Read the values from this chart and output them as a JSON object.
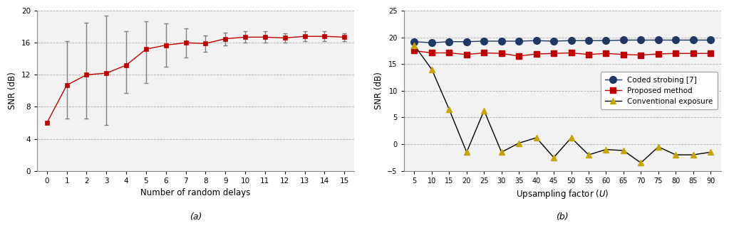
{
  "plot_a": {
    "x": [
      0,
      1,
      2,
      3,
      4,
      5,
      6,
      7,
      8,
      9,
      10,
      11,
      12,
      13,
      14,
      15
    ],
    "y": [
      6.0,
      10.7,
      12.0,
      12.2,
      13.2,
      15.2,
      15.7,
      16.0,
      15.9,
      16.5,
      16.7,
      16.7,
      16.6,
      16.8,
      16.8,
      16.7
    ],
    "yerr_low": [
      0.0,
      4.2,
      5.5,
      6.5,
      3.5,
      4.2,
      2.7,
      1.8,
      1.0,
      0.8,
      0.7,
      0.7,
      0.6,
      0.6,
      0.6,
      0.5
    ],
    "yerr_high": [
      0.0,
      5.5,
      6.5,
      7.2,
      4.2,
      3.5,
      2.7,
      1.8,
      1.0,
      0.8,
      0.7,
      0.7,
      0.6,
      0.6,
      0.6,
      0.5
    ],
    "xlabel": "Number of random delays",
    "ylabel": "SNR (dB)",
    "label_a": "(a)",
    "ylim": [
      0,
      20
    ],
    "yticks": [
      0,
      4,
      8,
      12,
      16,
      20
    ],
    "xticks": [
      0,
      1,
      2,
      3,
      4,
      5,
      6,
      7,
      8,
      9,
      10,
      11,
      12,
      13,
      14,
      15
    ],
    "xlim": [
      -0.5,
      15.5
    ],
    "line_color": "#c00000",
    "marker": "s",
    "markersize": 5,
    "errorbar_color": "#808080"
  },
  "plot_b": {
    "x": [
      5,
      10,
      15,
      20,
      25,
      30,
      35,
      40,
      45,
      50,
      55,
      60,
      65,
      70,
      75,
      80,
      85,
      90
    ],
    "y_coded": [
      19.2,
      19.0,
      19.2,
      19.2,
      19.3,
      19.3,
      19.3,
      19.4,
      19.3,
      19.4,
      19.4,
      19.4,
      19.5,
      19.5,
      19.5,
      19.5,
      19.5,
      19.5
    ],
    "y_proposed": [
      17.5,
      17.1,
      17.1,
      16.8,
      17.1,
      17.0,
      16.5,
      16.9,
      17.0,
      17.1,
      16.8,
      17.0,
      16.8,
      16.7,
      16.9,
      17.0,
      17.0,
      17.0
    ],
    "y_conventional": [
      18.5,
      14.0,
      6.5,
      -1.5,
      6.3,
      -1.5,
      0.2,
      1.2,
      -2.5,
      1.2,
      -2.0,
      -1.0,
      -1.2,
      -3.5,
      -0.5,
      -2.0,
      -2.0,
      -1.5
    ],
    "xlabel": "Upsampling factor (U)",
    "ylabel": "SNR (dB)",
    "label_b": "(b)",
    "ylim": [
      -5,
      25
    ],
    "yticks": [
      -5,
      0,
      5,
      10,
      15,
      20,
      25
    ],
    "xticks": [
      5,
      10,
      15,
      20,
      25,
      30,
      35,
      40,
      45,
      50,
      55,
      60,
      65,
      70,
      75,
      80,
      85,
      90
    ],
    "xlim": [
      2,
      93
    ],
    "coded_color": "#1f3864",
    "proposed_color": "#c00000",
    "conventional_line_color": "#000000",
    "conventional_marker_color": "#c8a400",
    "legend_coded": "Coded strobing [7]",
    "legend_proposed": "Proposed method",
    "legend_conventional": "Conventional exposure"
  },
  "fig_width": 10.23,
  "fig_height": 3.31,
  "dpi": 100
}
